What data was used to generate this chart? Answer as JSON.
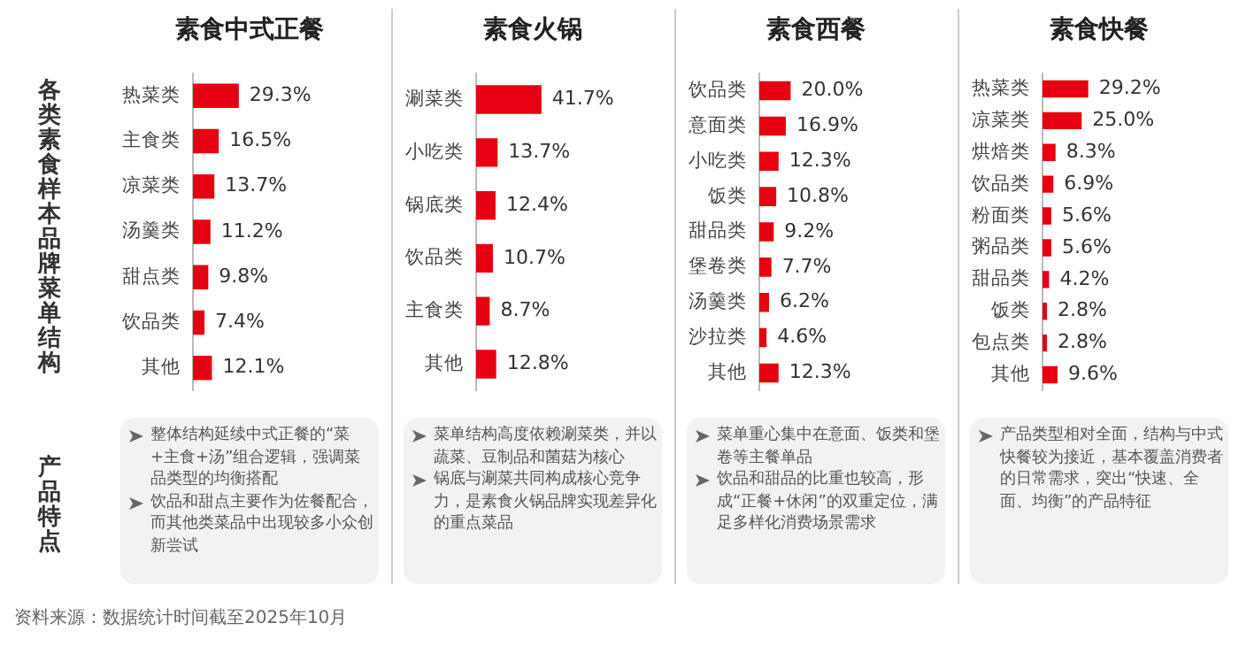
{
  "chart_data": [
    {
      "type": "bar",
      "orientation": "horizontal",
      "title": "素食中式正餐",
      "categories": [
        "热菜类",
        "主食类",
        "凉菜类",
        "汤羹类",
        "甜点类",
        "饮品类",
        "其他"
      ],
      "values": [
        29.3,
        16.5,
        13.7,
        11.2,
        9.8,
        7.4,
        12.1
      ],
      "value_labels": [
        "29.3%",
        "16.5%",
        "13.7%",
        "11.2%",
        "9.8%",
        "7.4%",
        "12.1%"
      ],
      "color": "#e60012",
      "tick_labels": "y",
      "annotations": [
        "整体结构延续中式正餐的“菜+主食+汤”组合逻辑，强调菜品类型的均衡搭配",
        "饮品和甜点主要作为佐餐配合，而其他类菜品中出现较多小众创新尝试"
      ]
    },
    {
      "type": "bar",
      "orientation": "horizontal",
      "title": "素食火锅",
      "categories": [
        "涮菜类",
        "小吃类",
        "锅底类",
        "饮品类",
        "主食类",
        "其他"
      ],
      "values": [
        41.7,
        13.7,
        12.4,
        10.7,
        8.7,
        12.8
      ],
      "value_labels": [
        "41.7%",
        "13.7%",
        "12.4%",
        "10.7%",
        "8.7%",
        "12.8%"
      ],
      "color": "#e60012",
      "tick_labels": "y",
      "annotations": [
        "菜单结构高度依赖涮菜类，并以蔬菜、豆制品和菌菇为核心",
        "锅底与涮菜共同构成核心竞争力，是素食火锅品牌实现差异化的重点菜品"
      ]
    },
    {
      "type": "bar",
      "orientation": "horizontal",
      "title": "素食西餐",
      "categories": [
        "饮品类",
        "意面类",
        "小吃类",
        "饭类",
        "甜品类",
        "堡卷类",
        "汤羹类",
        "沙拉类",
        "其他"
      ],
      "values": [
        20.0,
        16.9,
        12.3,
        10.8,
        9.2,
        7.7,
        6.2,
        4.6,
        12.3
      ],
      "value_labels": [
        "20.0%",
        "16.9%",
        "12.3%",
        "10.8%",
        "9.2%",
        "7.7%",
        "6.2%",
        "4.6%",
        "12.3%"
      ],
      "color": "#e60012",
      "tick_labels": "y",
      "annotations": [
        "菜单重心集中在意面、饭类和堡卷等主餐单品",
        "饮品和甜品的比重也较高，形成“正餐+休闲”的双重定位，满足多样化消费场景需求"
      ]
    },
    {
      "type": "bar",
      "orientation": "horizontal",
      "title": "素食快餐",
      "categories": [
        "热菜类",
        "凉菜类",
        "烘焙类",
        "饮品类",
        "粉面类",
        "粥品类",
        "甜品类",
        "饭类",
        "包点类",
        "其他"
      ],
      "values": [
        29.2,
        25.0,
        8.3,
        6.9,
        5.6,
        5.6,
        4.2,
        2.8,
        2.8,
        9.6
      ],
      "value_labels": [
        "29.2%",
        "25.0%",
        "8.3%",
        "6.9%",
        "5.6%",
        "5.6%",
        "4.2%",
        "2.8%",
        "2.8%",
        "9.6%"
      ],
      "color": "#e60012",
      "tick_labels": "y",
      "annotations": [
        "产品类型相对全面，结构与中式快餐较为接近，基本覆盖消费者的日常需求，突出“快速、全面、均衡”的产品特征"
      ]
    },
    {
      "type": "other",
      "annotations": [
        "各类素食样本品牌菜单结构",
        "产品特点",
        "资料来源：数据统计时间截至2025年10月"
      ]
    }
  ]
}
